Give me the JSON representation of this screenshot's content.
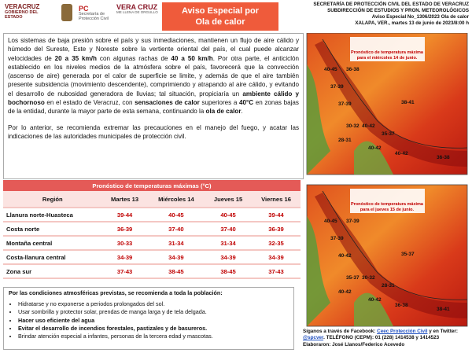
{
  "header": {
    "logos": [
      "VERACRUZ",
      "GOBIERNO DEL ESTADO",
      "PC",
      "Secretaría de Protección Civil",
      "VERA CRUZ",
      "ME LLENA DE ORGULLO"
    ],
    "title_lines": [
      "Aviso Especial por",
      "Ola de calor"
    ],
    "info": [
      "SECRETARÍA DE PROTECCIÓN CIVIL DEL ESTADO DE VERACRUZ",
      "SUBDIRECCIÓN DE ESTUDIOS Y PRON. METEOROLÓGICOS",
      "Aviso Especial No_1306/2023 Ola de calor",
      "XALAPA, VER., martes 13 de junio de 2023/8:00 h"
    ]
  },
  "bulletin": {
    "paragraphs": [
      [
        "Los sistemas de baja presión sobre el país y sus inmediaciones, mantienen un flujo de aire cálido y húmedo del Sureste, Este y Noreste sobre la vertiente oriental del país, el cual puede alcanzar velocidades de ",
        "20 a 35 km/h",
        " con algunas rachas de ",
        "40 a 50 km/h",
        ". Por otra parte, el anticiclón establecido en los niveles medios de la atmósfera sobre el país, favorecerá que la convección (ascenso de aire) generada por el calor de superficie se limite, y además de que el aire también presente subsidencia (movimiento descendente), comprimiendo y atrapando al aire cálido, y evitando el desarrollo de nubosidad generadora de lluvias; tal situación, propiciaría un ",
        "ambiente cálido y bochornoso",
        " en el estado de Veracruz, con ",
        "sensaciones de calor",
        " superiores a ",
        "40°C",
        " en zonas bajas de la entidad, durante la mayor parte de esta semana, continuando la ",
        "ola de calor",
        "."
      ],
      [
        "Por lo anterior, se recomienda extremar las precauciones en el manejo del fuego, y acatar las indicaciones de las autoridades municipales de protección civil."
      ]
    ]
  },
  "table": {
    "title": "Pronóstico de temperaturas máximas (°C)",
    "columns": [
      "Región",
      "Martes 13",
      "Miércoles 14",
      "Jueves 15",
      "Viernes 16"
    ],
    "rows": [
      [
        "Llanura norte-Huasteca",
        "39-44",
        "40-45",
        "40-45",
        "39-44"
      ],
      [
        "Costa norte",
        "36-39",
        "37-40",
        "37-40",
        "36-39"
      ],
      [
        "Montaña central",
        "30-33",
        "31-34",
        "31-34",
        "32-35"
      ],
      [
        "Costa-llanura central",
        "34-39",
        "34-39",
        "34-39",
        "34-39"
      ],
      [
        "Zona sur",
        "37-43",
        "38-45",
        "38-45",
        "37-43"
      ]
    ]
  },
  "recommendations": {
    "heading": "Por las condiciones atmosféricas previstas, se recomienda a toda la población:",
    "items": [
      "Hidratarse y no exponerse a periodos prolongados del sol.",
      "Usar sombrilla y protector solar, prendas de manga larga y de tela delgada.",
      "Hacer uso eficiente del agua",
      "Evitar el desarrollo de incendios forestales, pastizales y de basureros.",
      "Brindar atención especial a infantes, personas de la tercera edad y mascotas."
    ]
  },
  "maps": [
    {
      "caption": [
        "Pronóstico de temperatura máxima",
        "para el miércoles 14 de junio."
      ],
      "labels": [
        "40-45",
        "36-38",
        "37-39",
        "37-39",
        "40-42",
        "30-32",
        "35-37",
        "28-31",
        "40-42",
        "40-42",
        "36-38",
        "38-41"
      ]
    },
    {
      "caption": [
        "Pronóstico de temperatura máxima",
        "para el jueves 15 de junio."
      ],
      "labels": [
        "40-45",
        "37-39",
        "37-39",
        "40-42",
        "30-32",
        "35-37",
        "28-31",
        "40-42",
        "40-42",
        "36-38",
        "38-41",
        "35-37"
      ]
    }
  ],
  "footer": {
    "parts": [
      "Síganos a través de Facebook: ",
      "Ceec Protección Civil",
      " y en Twitter: ",
      "@spcver",
      ". TELÉFONO (CEPM): 01 (228) 1414538 y 1414523",
      "Elaboraron: José Llanos/Federico Acevedo"
    ]
  }
}
